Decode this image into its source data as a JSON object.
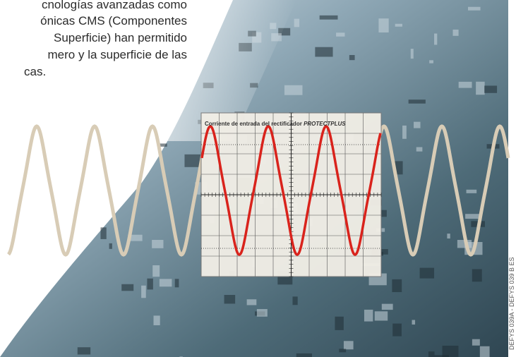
{
  "text": {
    "lines": [
      "cnologías avanzadas como",
      "ónicas CMS (Componentes",
      "Superficie) han permitido",
      "mero y la superficie de las",
      "cas."
    ]
  },
  "oscilloscope": {
    "caption": "Corriente de entrada del rectificador",
    "product": "PROTECTPLUS"
  },
  "side_label": "DEFYS 039A - DEFYS 039 B ES"
}
